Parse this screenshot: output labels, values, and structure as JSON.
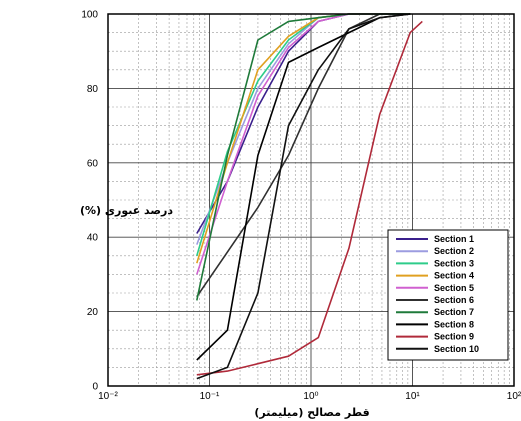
{
  "chart_data": {
    "type": "line",
    "title": "",
    "xlabel": "قطر مصالح (میلیمتر)",
    "ylabel": "درصد عبوری (%)",
    "xscale": "log",
    "xlim": [
      0.01,
      100
    ],
    "ylim": [
      0,
      100
    ],
    "grid": true,
    "legend_position": "bottom-right",
    "x_tick_labels": [
      "10⁻²",
      "10⁻¹",
      "10⁰",
      "10¹",
      "10²"
    ],
    "y_tick_labels": [
      "0",
      "20",
      "40",
      "60",
      "80",
      "100"
    ],
    "series": [
      {
        "name": "Section 1",
        "color": "#3a1f8c",
        "x": [
          0.075,
          0.15,
          0.3,
          0.6,
          1.18,
          2.36,
          4.75,
          9.5
        ],
        "y": [
          41,
          55,
          75,
          90,
          98,
          100,
          100,
          100
        ]
      },
      {
        "name": "Section 2",
        "color": "#9c9ce0",
        "x": [
          0.075,
          0.15,
          0.3,
          0.6,
          1.18,
          2.36,
          4.75,
          9.5
        ],
        "y": [
          38,
          60,
          80,
          92,
          99,
          100,
          100,
          100
        ]
      },
      {
        "name": "Section 3",
        "color": "#2ecc8a",
        "x": [
          0.075,
          0.15,
          0.3,
          0.6,
          1.18,
          2.36,
          4.75,
          9.5
        ],
        "y": [
          35,
          63,
          82,
          93,
          99,
          100,
          100,
          100
        ]
      },
      {
        "name": "Section 4",
        "color": "#e0a020",
        "x": [
          0.075,
          0.15,
          0.3,
          0.6,
          1.18,
          2.36,
          4.75,
          9.5
        ],
        "y": [
          33,
          60,
          85,
          94,
          99,
          100,
          100,
          100
        ]
      },
      {
        "name": "Section 5",
        "color": "#d060d0",
        "x": [
          0.075,
          0.15,
          0.3,
          0.6,
          1.18,
          2.36,
          4.75,
          9.5
        ],
        "y": [
          30,
          55,
          78,
          91,
          98,
          100,
          100,
          100
        ]
      },
      {
        "name": "Section 6",
        "color": "#303030",
        "x": [
          0.075,
          0.15,
          0.3,
          0.6,
          1.18,
          2.36,
          4.75,
          9.5
        ],
        "y": [
          24,
          36,
          48,
          62,
          80,
          96,
          100,
          100
        ]
      },
      {
        "name": "Section 7",
        "color": "#1f7a3a",
        "x": [
          0.075,
          0.15,
          0.3,
          0.6,
          1.18,
          2.36,
          4.75,
          9.5
        ],
        "y": [
          23,
          62,
          93,
          98,
          99,
          100,
          100,
          100
        ]
      },
      {
        "name": "Section 8",
        "color": "#000000",
        "x": [
          0.075,
          0.15,
          0.3,
          0.6,
          1.18,
          2.36,
          4.75,
          9.5
        ],
        "y": [
          7,
          15,
          62,
          87,
          91,
          95,
          99,
          100
        ]
      },
      {
        "name": "Section 9",
        "color": "#b02a3a",
        "x": [
          0.075,
          0.15,
          0.3,
          0.6,
          1.18,
          2.36,
          4.75,
          9.5,
          12.5
        ],
        "y": [
          3,
          4,
          6,
          8,
          13,
          37,
          73,
          95,
          98
        ]
      },
      {
        "name": "Section 10",
        "color": "#111111",
        "x": [
          0.075,
          0.15,
          0.3,
          0.6,
          1.18,
          2.36,
          4.75,
          9.5
        ],
        "y": [
          2,
          5,
          25,
          70,
          85,
          96,
          99,
          100
        ]
      }
    ]
  }
}
